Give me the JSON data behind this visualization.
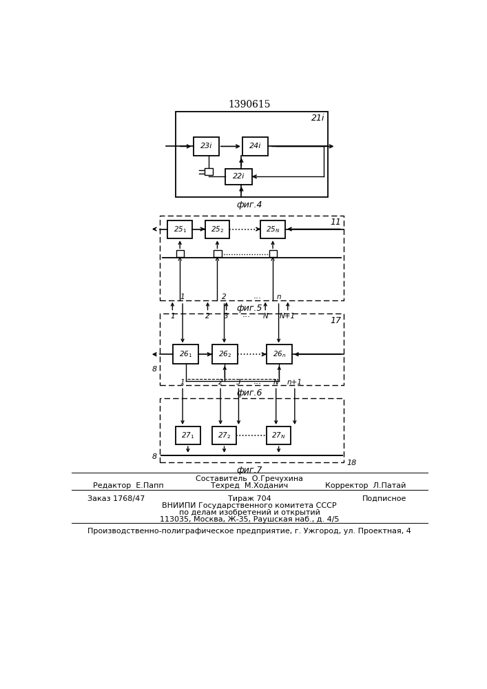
{
  "title": "1390615",
  "background_color": "#ffffff",
  "fig4_label": "21i",
  "fig4_caption": "фиг.4",
  "fig5_label": "11",
  "fig5_caption": "фиг.5",
  "fig6_label": "17",
  "fig6_caption": "фиг.6",
  "fig7_label": "18",
  "fig7_caption": "фиг.7",
  "footer_line1": "Составитель  О.Гречухина",
  "footer_line2_left": "Редактор  Е.Папп",
  "footer_line2_center": "Техред  М.Ходанич",
  "footer_line2_right": "Корректор  Л.Патай",
  "footer_line3_left": "Заказ 1768/47",
  "footer_line3_center": "Тираж 704",
  "footer_line3_right": "Подписное",
  "footer_line4": "ВНИИПИ Государственного комитета СССР",
  "footer_line5": "по делам изобретений и открытий",
  "footer_line6": "113035, Москва, Ж-35, Раушская наб., д. 4/5",
  "footer_line7": "Производственно-полиграфическое предприятие, г. Ужгород, ул. Проектная, 4"
}
